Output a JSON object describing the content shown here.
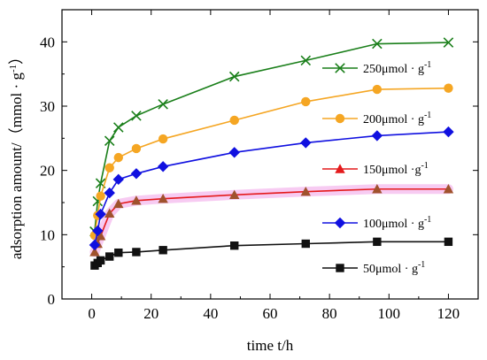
{
  "chart_data": {
    "type": "line",
    "xlabel": "time t/h",
    "ylabel": "adsorption amount/（mmol · g",
    "ylabel_sup": "-1",
    "ylabel_end": "）",
    "xlim": [
      -10,
      130
    ],
    "ylim": [
      0,
      45
    ],
    "xticks": [
      0,
      20,
      40,
      60,
      80,
      100,
      120
    ],
    "yticks": [
      0,
      10,
      20,
      30,
      40
    ],
    "grid": false,
    "legend_placement": "right",
    "x": [
      1,
      2,
      3,
      6,
      9,
      15,
      24,
      48,
      72,
      96,
      120
    ],
    "series": [
      {
        "name": "250μmol · g",
        "name_sup": "-1",
        "color": "#1a7f1a",
        "marker": "x",
        "values": [
          10.5,
          15.2,
          18.0,
          24.6,
          26.7,
          28.5,
          30.3,
          34.6,
          37.1,
          39.7,
          39.9
        ]
      },
      {
        "name": "200μmol · g",
        "name_sup": "-1",
        "color": "#f5a623",
        "marker": "circle",
        "values": [
          9.9,
          13.0,
          16.0,
          20.4,
          22.0,
          23.4,
          24.9,
          27.8,
          30.7,
          32.6,
          32.8
        ]
      },
      {
        "name": "150μmol ·g",
        "name_sup": "-1",
        "color": "#e41a1c",
        "marker": "triangle",
        "values": [
          7.3,
          8.6,
          9.8,
          13.3,
          14.8,
          15.3,
          15.6,
          16.2,
          16.7,
          17.1,
          17.1
        ]
      },
      {
        "name": "100μmol · g",
        "name_sup": "-1",
        "color": "#1010e0",
        "marker": "diamond",
        "values": [
          8.4,
          10.6,
          13.2,
          16.5,
          18.6,
          19.5,
          20.6,
          22.8,
          24.3,
          25.4,
          26.0
        ]
      },
      {
        "name": "50μmol · g",
        "name_sup": "-1",
        "color": "#111111",
        "marker": "square",
        "values": [
          5.2,
          5.6,
          6.0,
          6.6,
          7.2,
          7.3,
          7.6,
          8.3,
          8.6,
          8.9,
          8.9
        ]
      }
    ]
  }
}
